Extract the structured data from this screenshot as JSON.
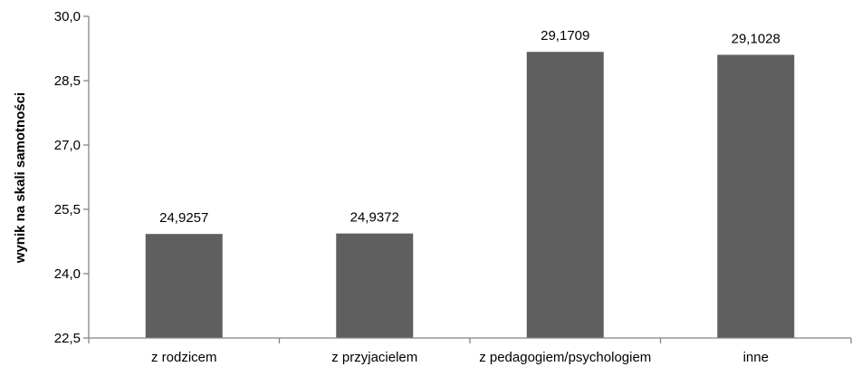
{
  "chart_data": {
    "type": "bar",
    "title": "",
    "xlabel": "",
    "ylabel": "wynik na skali samotności",
    "categories": [
      "z rodzicem",
      "z przyjacielem",
      "z pedagogiem/psychologiem",
      "inne"
    ],
    "values": [
      24.9257,
      24.9372,
      29.1709,
      29.1028
    ],
    "value_labels": [
      "24,9257",
      "24,9372",
      "29,1709",
      "29,1028"
    ],
    "ylim": [
      22.5,
      30.0
    ],
    "yticks": [
      22.5,
      24.0,
      25.5,
      27.0,
      28.5,
      30.0
    ],
    "ytick_labels": [
      "22,5",
      "24,0",
      "25,5",
      "27,0",
      "28,5",
      "30,0"
    ],
    "grid": false,
    "legend": "none",
    "bar_color": "#5f5f5f",
    "axis_color": "#858585"
  }
}
